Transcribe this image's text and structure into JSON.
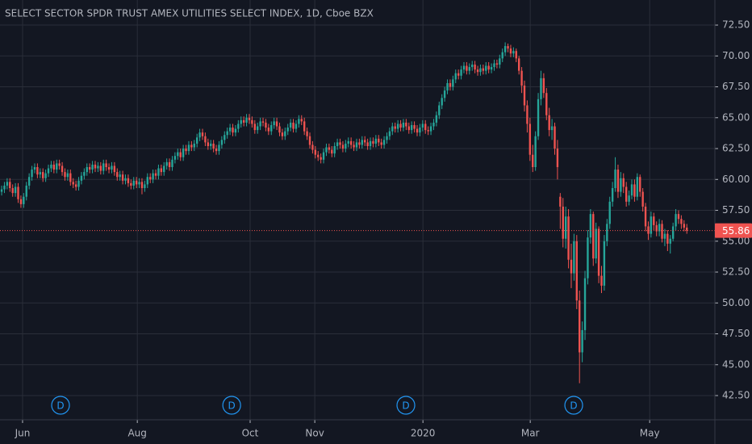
{
  "chart_data": {
    "type": "candlestick",
    "title": "SELECT SECTOR SPDR TRUST AMEX UTILITIES SELECT INDEX, 1D, Cboe BZX",
    "up_color": "#26a69a",
    "down_color": "#ef5350",
    "background": "#131722",
    "grid_color": "#2a2e39",
    "text_color": "#b2b5be",
    "grid": true,
    "open": [
      59.0,
      59.2,
      59.5,
      59.8,
      59.3,
      58.9,
      59.4,
      58.4,
      58.0,
      58.6,
      59.5,
      60.2,
      60.8,
      61.0,
      60.4,
      60.6,
      60.1,
      60.5,
      60.9,
      61.2,
      60.8,
      61.3,
      61.1,
      60.6,
      60.2,
      60.5,
      59.8,
      59.6,
      59.4,
      59.9,
      60.3,
      60.6,
      61.0,
      60.8,
      61.2,
      60.9,
      61.1,
      60.7,
      61.3,
      61.0,
      60.8,
      61.1,
      60.6,
      60.2,
      60.4,
      59.9,
      60.1,
      59.7,
      59.5,
      59.9,
      59.6,
      59.8,
      59.3,
      59.6,
      60.2,
      60.0,
      60.5,
      60.3,
      60.9,
      60.6,
      61.1,
      61.4,
      61.0,
      61.6,
      61.9,
      62.2,
      61.8,
      62.5,
      62.3,
      62.8,
      62.6,
      62.9,
      63.4,
      63.8,
      63.5,
      63.0,
      62.7,
      62.9,
      62.5,
      62.3,
      62.8,
      63.2,
      63.6,
      63.9,
      64.2,
      63.8,
      64.1,
      64.5,
      64.8,
      64.6,
      65.0,
      64.8,
      64.5,
      64.0,
      64.3,
      64.7,
      64.6,
      64.2,
      63.9,
      64.4,
      64.7,
      64.3,
      63.8,
      63.5,
      63.9,
      64.2,
      64.6,
      64.1,
      64.5,
      64.9,
      64.7,
      63.9,
      63.5,
      62.8,
      62.4,
      62.0,
      61.8,
      61.6,
      62.2,
      62.6,
      62.4,
      62.1,
      62.7,
      63.0,
      62.8,
      62.5,
      62.9,
      63.1,
      62.8,
      62.6,
      63.0,
      62.8,
      63.2,
      63.0,
      62.7,
      63.1,
      62.9,
      63.3,
      63.0,
      62.8,
      63.2,
      63.5,
      63.9,
      64.3,
      64.1,
      64.5,
      64.2,
      64.6,
      64.3,
      64.0,
      64.4,
      64.1,
      63.8,
      64.2,
      64.5,
      64.0,
      63.9,
      64.3,
      64.6,
      65.2,
      66.0,
      66.6,
      67.2,
      67.8,
      67.5,
      68.1,
      68.6,
      68.4,
      68.9,
      69.2,
      68.8,
      69.1,
      69.3,
      68.9,
      68.7,
      69.0,
      68.8,
      69.2,
      68.9,
      69.1,
      69.4,
      69.3,
      69.8,
      70.3,
      70.8,
      70.6,
      70.2,
      70.4,
      69.8,
      68.8,
      67.6,
      66.0,
      64.5,
      62.0,
      61.0,
      63.5,
      66.5,
      68.2,
      67.0,
      65.2,
      64.0,
      64.3,
      62.5,
      58.6,
      57.8,
      55.2,
      57.0,
      53.5,
      52.4,
      55.0,
      50.2,
      46.0,
      47.8,
      52.0,
      55.3,
      57.2,
      53.6,
      56.0,
      52.2,
      51.4,
      55.0,
      56.4,
      58.2,
      59.3,
      60.8,
      59.0,
      60.1,
      59.4,
      58.2,
      58.7,
      59.6,
      58.6,
      60.2,
      59.0,
      57.8,
      56.2,
      55.6,
      57.0,
      56.3,
      55.8,
      56.4,
      55.2,
      55.6,
      54.8,
      55.2,
      56.2,
      57.2,
      56.8,
      56.4,
      56.1
    ],
    "high": [
      59.5,
      59.8,
      60.1,
      60.1,
      59.6,
      59.7,
      59.7,
      58.7,
      58.9,
      59.8,
      60.5,
      61.1,
      61.3,
      61.3,
      60.9,
      60.9,
      60.8,
      61.2,
      61.5,
      61.5,
      61.6,
      61.6,
      61.4,
      60.9,
      60.8,
      60.8,
      60.1,
      59.9,
      60.2,
      60.6,
      60.9,
      61.3,
      61.3,
      61.5,
      61.5,
      61.4,
      61.4,
      61.6,
      61.6,
      61.3,
      61.4,
      61.4,
      60.9,
      60.7,
      60.7,
      60.4,
      60.4,
      60.0,
      60.2,
      60.2,
      60.1,
      60.1,
      59.9,
      60.5,
      60.5,
      60.8,
      60.8,
      61.2,
      61.2,
      61.4,
      61.7,
      61.7,
      61.9,
      62.2,
      62.5,
      62.5,
      62.8,
      62.8,
      63.1,
      63.1,
      63.2,
      63.7,
      64.1,
      64.1,
      63.8,
      63.3,
      63.2,
      63.2,
      62.8,
      63.1,
      63.5,
      63.9,
      64.2,
      64.5,
      64.5,
      64.4,
      64.8,
      65.1,
      65.1,
      65.3,
      65.3,
      65.1,
      64.8,
      64.6,
      65.0,
      65.0,
      64.9,
      64.5,
      64.7,
      65.0,
      65.0,
      64.6,
      64.1,
      64.2,
      64.5,
      64.9,
      64.9,
      64.8,
      65.2,
      65.2,
      65.0,
      64.2,
      63.8,
      63.1,
      62.7,
      62.3,
      62.1,
      62.5,
      62.9,
      62.9,
      62.7,
      63.0,
      63.3,
      63.3,
      63.1,
      63.2,
      63.4,
      63.4,
      63.1,
      63.3,
      63.3,
      63.5,
      63.5,
      63.3,
      63.4,
      63.4,
      63.6,
      63.6,
      63.3,
      63.5,
      63.8,
      64.2,
      64.6,
      64.6,
      64.8,
      64.8,
      64.9,
      64.9,
      64.6,
      64.7,
      64.7,
      64.4,
      64.5,
      64.8,
      64.8,
      64.3,
      64.6,
      64.9,
      65.5,
      66.3,
      66.9,
      67.5,
      68.1,
      68.1,
      68.4,
      68.9,
      68.9,
      69.2,
      69.5,
      69.5,
      69.4,
      69.6,
      69.6,
      69.2,
      69.3,
      69.3,
      69.5,
      69.5,
      69.4,
      69.7,
      69.7,
      70.1,
      70.6,
      71.1,
      71.0,
      70.9,
      70.7,
      70.6,
      70.0,
      69.1,
      68.0,
      66.4,
      65.0,
      62.8,
      63.9,
      67.0,
      68.8,
      68.6,
      67.4,
      65.8,
      64.9,
      64.6,
      63.2,
      58.9,
      58.5,
      57.8,
      57.6,
      54.8,
      55.6,
      55.5,
      51.0,
      48.5,
      52.6,
      55.9,
      57.6,
      57.4,
      56.5,
      56.2,
      53.0,
      55.5,
      56.8,
      58.6,
      59.8,
      61.8,
      61.2,
      60.6,
      60.5,
      59.8,
      59.1,
      60.0,
      60.0,
      60.5,
      60.4,
      59.3,
      58.1,
      56.6,
      57.4,
      57.3,
      56.6,
      56.8,
      56.7,
      56.0,
      55.9,
      55.5,
      56.5,
      57.6,
      57.5,
      57.1,
      56.7,
      56.4
    ],
    "low": [
      58.7,
      58.9,
      59.2,
      59.0,
      58.6,
      58.6,
      58.1,
      57.7,
      57.7,
      58.3,
      59.2,
      59.9,
      60.5,
      60.1,
      60.1,
      59.8,
      59.8,
      60.2,
      60.6,
      60.5,
      60.5,
      60.8,
      60.3,
      59.9,
      59.9,
      59.5,
      59.3,
      59.1,
      59.1,
      59.6,
      60.0,
      60.3,
      60.5,
      60.5,
      60.6,
      60.6,
      60.4,
      60.4,
      60.7,
      60.5,
      60.5,
      60.3,
      59.9,
      59.9,
      59.6,
      59.6,
      59.4,
      59.2,
      59.2,
      59.3,
      59.3,
      58.8,
      59.0,
      59.3,
      59.7,
      59.7,
      60.0,
      60.0,
      60.3,
      60.3,
      60.8,
      60.7,
      60.7,
      61.3,
      61.6,
      61.5,
      61.5,
      62.0,
      62.0,
      62.3,
      62.3,
      62.6,
      63.1,
      63.2,
      62.7,
      62.4,
      62.4,
      62.2,
      62.0,
      62.0,
      62.5,
      62.9,
      63.3,
      63.6,
      63.5,
      63.5,
      63.8,
      64.2,
      64.3,
      64.3,
      64.5,
      64.2,
      63.7,
      63.7,
      64.0,
      64.3,
      63.9,
      63.6,
      63.6,
      64.1,
      64.0,
      63.5,
      63.2,
      63.2,
      63.6,
      63.9,
      63.8,
      63.8,
      64.2,
      64.4,
      63.6,
      63.2,
      62.5,
      62.1,
      61.7,
      61.5,
      61.3,
      61.3,
      61.9,
      62.1,
      61.8,
      61.8,
      62.4,
      62.5,
      62.2,
      62.2,
      62.6,
      62.5,
      62.3,
      62.3,
      62.5,
      62.5,
      62.7,
      62.4,
      62.4,
      62.6,
      62.6,
      62.7,
      62.5,
      62.5,
      62.9,
      63.2,
      63.6,
      63.8,
      63.8,
      63.9,
      63.9,
      64.0,
      63.7,
      63.7,
      63.8,
      63.5,
      63.5,
      63.9,
      63.7,
      63.6,
      63.6,
      64.0,
      64.3,
      64.9,
      65.7,
      66.3,
      66.9,
      67.2,
      67.2,
      67.8,
      68.1,
      68.1,
      68.6,
      68.5,
      68.5,
      68.8,
      68.6,
      68.4,
      68.4,
      68.5,
      68.5,
      68.6,
      68.6,
      68.8,
      69.0,
      69.0,
      69.5,
      70.0,
      70.3,
      69.9,
      69.9,
      69.5,
      68.5,
      67.0,
      65.5,
      63.8,
      61.5,
      60.6,
      60.7,
      63.2,
      66.0,
      66.6,
      64.8,
      63.5,
      63.2,
      62.0,
      60.0,
      56.0,
      54.5,
      54.4,
      52.8,
      51.2,
      51.8,
      49.5,
      43.5,
      45.2,
      47.0,
      51.5,
      54.8,
      53.0,
      53.2,
      51.6,
      50.8,
      51.0,
      54.6,
      56.0,
      57.8,
      59.0,
      58.5,
      58.6,
      58.9,
      57.8,
      57.9,
      58.4,
      58.2,
      58.3,
      58.6,
      57.4,
      55.8,
      55.1,
      55.3,
      55.9,
      55.4,
      55.4,
      54.9,
      54.6,
      54.2,
      54.0,
      55.0,
      55.9,
      56.4,
      56.0,
      55.8,
      55.6
    ],
    "close": [
      59.2,
      59.5,
      59.8,
      59.3,
      58.9,
      59.4,
      58.4,
      58.0,
      58.6,
      59.5,
      60.2,
      60.8,
      61.0,
      60.4,
      60.6,
      60.1,
      60.5,
      60.9,
      61.2,
      60.8,
      61.3,
      61.1,
      60.6,
      60.2,
      60.5,
      59.8,
      59.6,
      59.4,
      59.9,
      60.3,
      60.6,
      61.0,
      60.8,
      61.2,
      60.9,
      61.1,
      60.7,
      61.3,
      61.0,
      60.8,
      61.1,
      60.6,
      60.2,
      60.4,
      59.9,
      60.1,
      59.7,
      59.5,
      59.9,
      59.6,
      59.8,
      59.3,
      59.6,
      60.2,
      60.0,
      60.5,
      60.3,
      60.9,
      60.6,
      61.1,
      61.4,
      61.0,
      61.6,
      61.9,
      62.2,
      61.8,
      62.5,
      62.3,
      62.8,
      62.6,
      62.9,
      63.4,
      63.8,
      63.5,
      63.0,
      62.7,
      62.9,
      62.5,
      62.3,
      62.8,
      63.2,
      63.6,
      63.9,
      64.2,
      63.8,
      64.1,
      64.5,
      64.8,
      64.6,
      65.0,
      64.8,
      64.5,
      64.0,
      64.3,
      64.7,
      64.6,
      64.2,
      63.9,
      64.4,
      64.7,
      64.3,
      63.8,
      63.5,
      63.9,
      64.2,
      64.6,
      64.1,
      64.5,
      64.9,
      64.7,
      63.9,
      63.5,
      62.8,
      62.4,
      62.0,
      61.8,
      61.6,
      62.2,
      62.6,
      62.4,
      62.1,
      62.7,
      63.0,
      62.8,
      62.5,
      62.9,
      63.1,
      62.8,
      62.6,
      63.0,
      62.8,
      63.2,
      63.0,
      62.7,
      63.1,
      62.9,
      63.3,
      63.0,
      62.8,
      63.2,
      63.5,
      63.9,
      64.3,
      64.1,
      64.5,
      64.2,
      64.6,
      64.3,
      64.0,
      64.4,
      64.1,
      63.8,
      64.2,
      64.5,
      64.0,
      63.9,
      64.3,
      64.6,
      65.2,
      66.0,
      66.6,
      67.2,
      67.8,
      67.5,
      68.1,
      68.6,
      68.4,
      68.9,
      69.2,
      68.8,
      69.1,
      69.3,
      68.9,
      68.7,
      69.0,
      68.8,
      69.2,
      68.9,
      69.1,
      69.4,
      69.3,
      69.8,
      70.3,
      70.8,
      70.6,
      70.2,
      70.4,
      69.8,
      68.8,
      67.6,
      66.0,
      64.5,
      62.0,
      61.0,
      63.5,
      66.5,
      68.2,
      67.0,
      65.2,
      64.0,
      64.3,
      62.5,
      61.0,
      57.8,
      55.2,
      57.0,
      53.5,
      52.4,
      55.0,
      50.2,
      46.0,
      47.8,
      52.0,
      55.3,
      57.2,
      53.6,
      56.0,
      52.2,
      51.4,
      55.0,
      56.4,
      58.2,
      59.3,
      60.8,
      59.0,
      60.1,
      59.4,
      58.2,
      58.7,
      59.6,
      58.6,
      60.2,
      59.0,
      57.8,
      56.2,
      55.6,
      57.0,
      56.3,
      55.8,
      56.4,
      55.2,
      55.6,
      54.8,
      55.2,
      56.2,
      57.2,
      56.8,
      56.4,
      56.1,
      55.86
    ],
    "last_price": 55.86,
    "xlim": [
      -0.6,
      259.2
    ],
    "xticks": [
      {
        "value": 7.6,
        "label": "Jun"
      },
      {
        "value": 49.3,
        "label": "Aug"
      },
      {
        "value": 90.3,
        "label": "Oct"
      },
      {
        "value": 113.8,
        "label": "Nov"
      },
      {
        "value": 153.1,
        "label": "2020"
      },
      {
        "value": 192.1,
        "label": "Mar"
      },
      {
        "value": 235.5,
        "label": "May"
      }
    ],
    "ylim": [
      40.54,
      74.53
    ],
    "yticks": [
      {
        "value": 42.5,
        "label": "42.50"
      },
      {
        "value": 45,
        "label": "45.00"
      },
      {
        "value": 47.5,
        "label": "47.50"
      },
      {
        "value": 50,
        "label": "50.00"
      },
      {
        "value": 52.5,
        "label": "52.50"
      },
      {
        "value": 55,
        "label": "55.00"
      },
      {
        "value": 57.5,
        "label": "57.50"
      },
      {
        "value": 60,
        "label": "60.00"
      },
      {
        "value": 62.5,
        "label": "62.50"
      },
      {
        "value": 65,
        "label": "65.00"
      },
      {
        "value": 67.5,
        "label": "67.50"
      },
      {
        "value": 70,
        "label": "70.00"
      },
      {
        "value": 72.5,
        "label": "72.50"
      }
    ],
    "events": [
      {
        "label": "D",
        "x": 21.4
      },
      {
        "label": "D",
        "x": 83.6
      },
      {
        "label": "D",
        "x": 146.9
      },
      {
        "label": "D",
        "x": 207.9
      }
    ]
  }
}
